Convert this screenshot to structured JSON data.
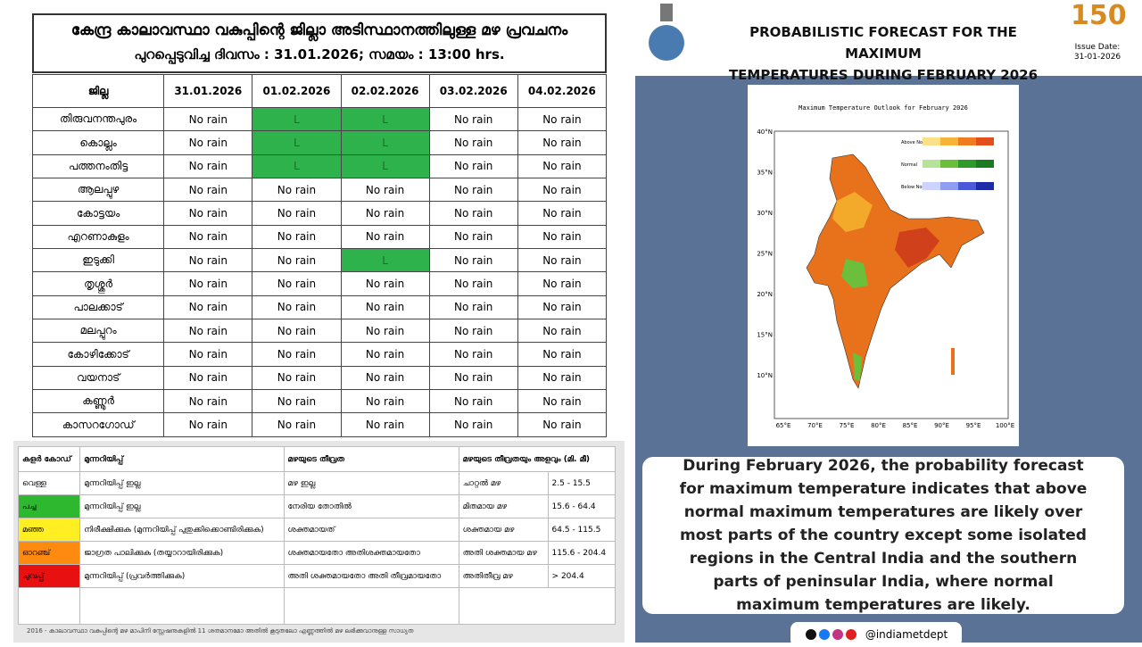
{
  "left": {
    "title": "കേന്ദ്ര കാലാവസ്ഥാ വകുപ്പിന്റെ ജില്ലാ അടിസ്ഥാനത്തിലുള്ള മഴ പ്രവചനം",
    "subtitle": "പുറപ്പെടുവിച്ച ദിവസം : 31.01.2026; സമയം : 13:00 hrs.",
    "table": {
      "header": [
        "ജില്ല",
        "31.01.2026",
        "01.02.2026",
        "02.02.2026",
        "03.02.2026",
        "04.02.2026"
      ],
      "rows": [
        [
          "തിരുവനന്തപുരം",
          "No rain",
          "L",
          "L",
          "No rain",
          "No rain"
        ],
        [
          "കൊല്ലം",
          "No rain",
          "L",
          "L",
          "No rain",
          "No rain"
        ],
        [
          "പത്തനംതിട്ട",
          "No rain",
          "L",
          "L",
          "No rain",
          "No rain"
        ],
        [
          "ആലപ്പുഴ",
          "No rain",
          "No rain",
          "No rain",
          "No rain",
          "No rain"
        ],
        [
          "കോട്ടയം",
          "No rain",
          "No rain",
          "No rain",
          "No rain",
          "No rain"
        ],
        [
          "എറണാകുളം",
          "No rain",
          "No rain",
          "No rain",
          "No rain",
          "No rain"
        ],
        [
          "ഇടുക്കി",
          "No rain",
          "No rain",
          "L",
          "No rain",
          "No rain"
        ],
        [
          "തൃശ്ശൂർ",
          "No rain",
          "No rain",
          "No rain",
          "No rain",
          "No rain"
        ],
        [
          "പാലക്കാട്",
          "No rain",
          "No rain",
          "No rain",
          "No rain",
          "No rain"
        ],
        [
          "മലപ്പുറം",
          "No rain",
          "No rain",
          "No rain",
          "No rain",
          "No rain"
        ],
        [
          "കോഴിക്കോട്",
          "No rain",
          "No rain",
          "No rain",
          "No rain",
          "No rain"
        ],
        [
          "വയനാട്",
          "No rain",
          "No rain",
          "No rain",
          "No rain",
          "No rain"
        ],
        [
          "കണ്ണൂർ",
          "No rain",
          "No rain",
          "No rain",
          "No rain",
          "No rain"
        ],
        [
          "കാസറഗോഡ്",
          "No rain",
          "No rain",
          "No rain",
          "No rain",
          "No rain"
        ]
      ]
    },
    "legend": {
      "header": [
        "കളർ കോഡ്",
        "മുന്നറിയിപ്പ്",
        "മഴയുടെ തീവ്രത",
        "മഴയുടെ തീവ്രതയും അളവും (മി. മീ)"
      ],
      "rows": [
        [
          "വെള്ള",
          "മുന്നറിയിപ്പ് ഇല്ല",
          "മഴ ഇല്ല",
          "ചാറ്റൽ മഴ",
          "2.5 - 15.5"
        ],
        [
          "പച്ച",
          "മുന്നറിയിപ്പ് ഇല്ല",
          "നേരിയ തോതിൽ",
          "മിതമായ മഴ",
          "15.6 - 64.4"
        ],
        [
          "മഞ്ഞ",
          "നിരീക്ഷിക്കുക (മുന്നറിയിപ്പ് പുതുക്കിക്കൊണ്ടിരിക്കുക)",
          "ശക്തമായത്",
          "ശക്തമായ മഴ",
          "64.5 - 115.5"
        ],
        [
          "ഓറഞ്ച്",
          "ജാഗ്രത പാലിക്കുക (തയ്യാറായിരിക്കുക)",
          "ശക്തമായതോ അതിശക്തമായതോ",
          "അതി ശക്തമായ മഴ",
          "115.6 - 204.4"
        ],
        [
          "ചുവപ്പ്",
          "മുന്നറിയിപ്പ് (പ്രവർത്തിക്കുക)",
          "അതി ശക്തമായതോ അതി തീവ്രമായതോ",
          "അതിതീവ്ര മഴ",
          "> 204.4"
        ]
      ],
      "note": "2016 - കാലാവസ്ഥാ വകുപ്പിന്റെ മഴ മാപിനി സ്റ്റേഷനുകളിൽ 11 ശതമാനമോ അതിൽ കൂടുതലോ എണ്ണത്തിൽ മഴ ലഭിക്കുവാനുള്ള സാധ്യത"
    }
  },
  "right": {
    "title": [
      "PROBABILISTIC FORECAST FOR THE MAXIMUM",
      "TEMPERATURES DURING FEBRUARY 2026"
    ],
    "logo": "150",
    "issue_label": "Issue Date:",
    "issue_date": "31-01-2026",
    "map": {
      "title": "Maximum Temperature Outlook for February 2026",
      "lat_labels": [
        "40°N",
        "35°N",
        "30°N",
        "25°N",
        "20°N",
        "15°N",
        "10°N"
      ],
      "lon_labels": [
        "65°E",
        "70°E",
        "75°E",
        "80°E",
        "85°E",
        "90°E",
        "95°E",
        "100°E"
      ],
      "legend": [
        "Above Normal",
        "Normal",
        "Below Normal"
      ]
    },
    "description": "During February 2026, the probability forecast for maximum temperature indicates that above normal maximum temperatures are likely over most parts of the country except some isolated regions in the Central India and the southern parts of peninsular India, where normal maximum temperatures are likely.",
    "handle": "@indiametdept"
  }
}
